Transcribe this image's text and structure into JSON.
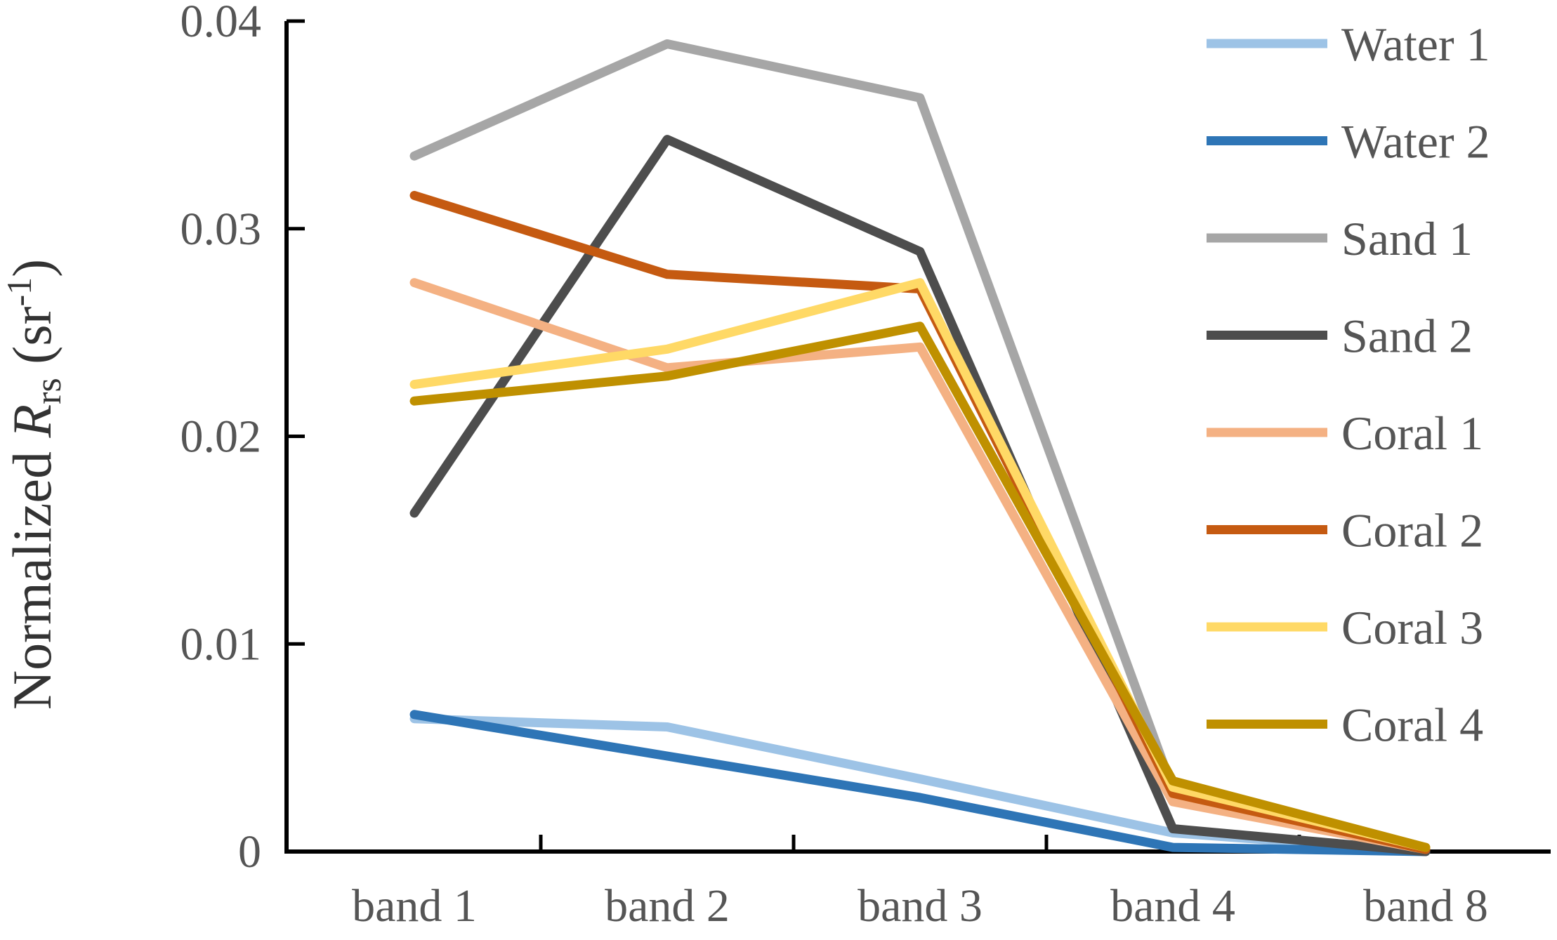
{
  "chart_data": {
    "type": "line",
    "categories": [
      "band 1",
      "band 2",
      "band 3",
      "band 4",
      "band 8"
    ],
    "ylabel": {
      "main": "Normalized ",
      "italic": "R",
      "sub": "rs",
      "unit_open": " (sr",
      "sup": "-1",
      "unit_close": ")"
    },
    "ylim": [
      0,
      0.04
    ],
    "yticks": [
      0,
      0.01,
      0.02,
      0.03,
      0.04
    ],
    "ytick_labels": [
      "0",
      "0.01",
      "0.02",
      "0.03",
      "0.04"
    ],
    "grid": false,
    "legend_position": "right",
    "series": [
      {
        "name": "Water 1",
        "color": "#9DC3E6",
        "values": [
          0.0064,
          0.006,
          0.0035,
          0.0009,
          0.0
        ]
      },
      {
        "name": "Water 2",
        "color": "#2E75B6",
        "values": [
          0.0066,
          0.0046,
          0.0026,
          0.0002,
          0.0
        ]
      },
      {
        "name": "Sand 1",
        "color": "#A6A6A6",
        "values": [
          0.0335,
          0.0389,
          0.0363,
          0.003,
          0.0002
        ]
      },
      {
        "name": "Sand 2",
        "color": "#4D4D4D",
        "values": [
          0.0163,
          0.0343,
          0.0289,
          0.0011,
          0.0
        ]
      },
      {
        "name": "Coral 1",
        "color": "#F4B183",
        "values": [
          0.0274,
          0.0233,
          0.0243,
          0.0024,
          0.0001
        ]
      },
      {
        "name": "Coral 2",
        "color": "#C55A11",
        "values": [
          0.0316,
          0.0278,
          0.0271,
          0.0028,
          0.0001
        ]
      },
      {
        "name": "Coral 3",
        "color": "#FFD966",
        "values": [
          0.0225,
          0.0242,
          0.0274,
          0.0031,
          0.0002
        ]
      },
      {
        "name": "Coral 4",
        "color": "#BF9000",
        "values": [
          0.0217,
          0.0229,
          0.0253,
          0.0034,
          0.0002
        ]
      }
    ]
  }
}
